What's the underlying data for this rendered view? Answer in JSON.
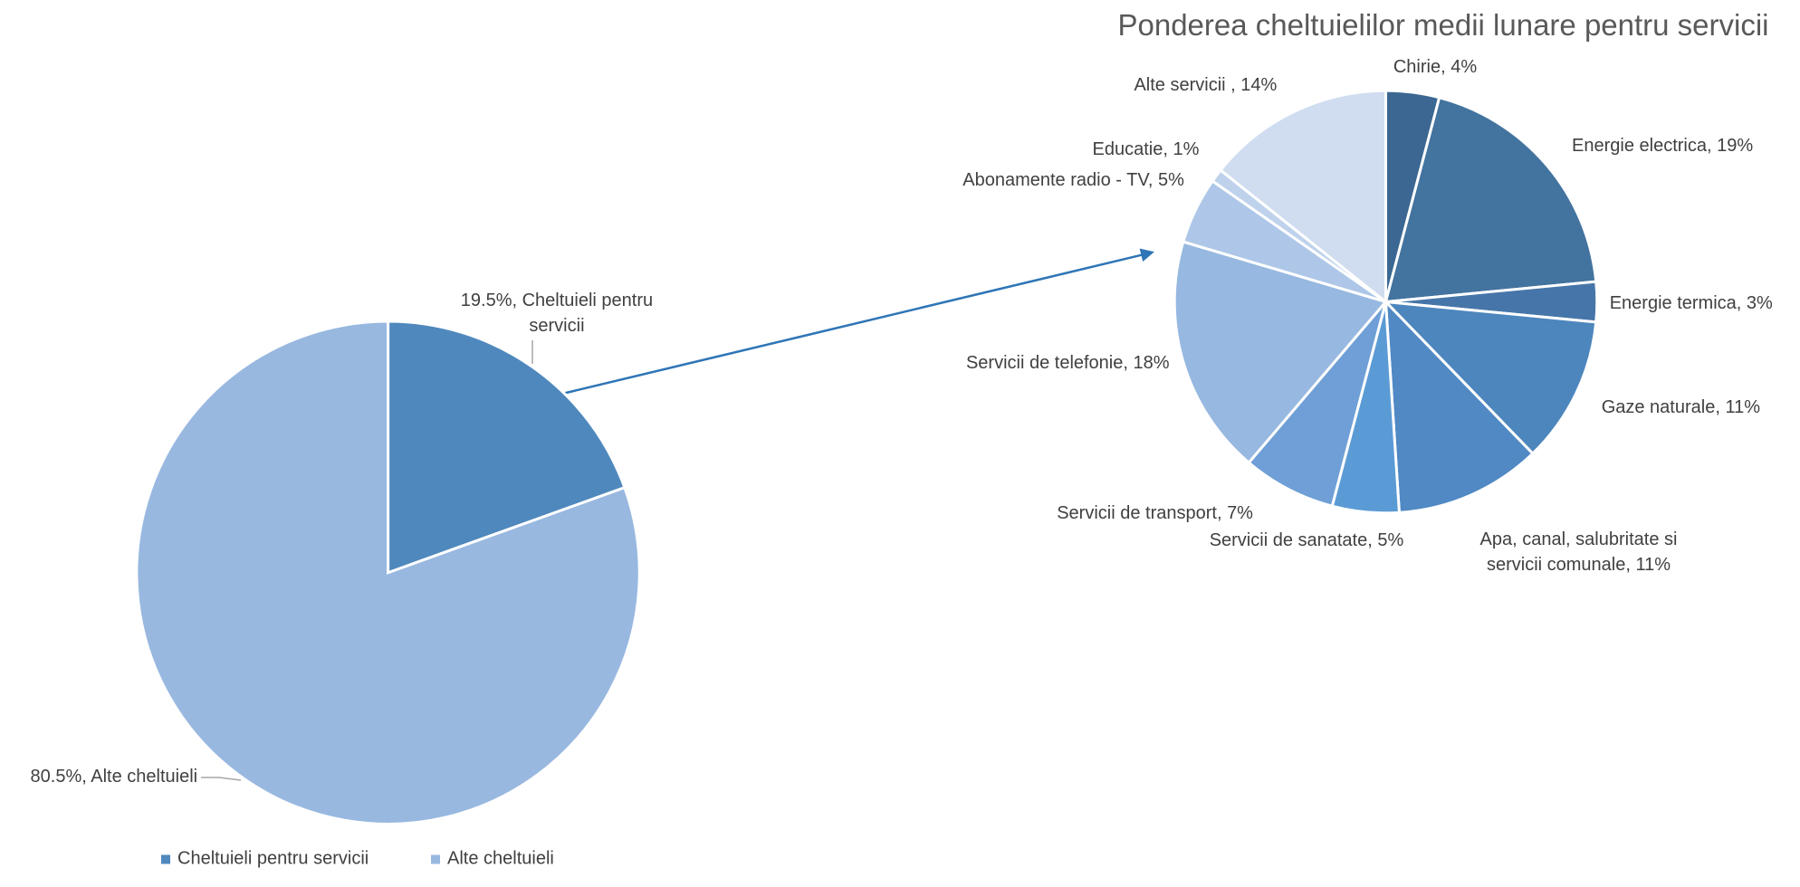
{
  "chart_data": [
    {
      "type": "pie",
      "categories": [
        "Cheltuieli pentru servicii",
        "Alte cheltuieli"
      ],
      "values": [
        19.5,
        80.5
      ],
      "value_labels": [
        "19.5%, Cheltuieli pentru servicii",
        "80.5%, Alte cheltuieli"
      ],
      "colors": [
        "#4f88bd",
        "#98b8e0"
      ],
      "legend": "bottom"
    },
    {
      "type": "pie",
      "title": "Ponderea cheltuielilor medii lunare pentru servicii",
      "categories": [
        "Chirie",
        "Energie electrica",
        "Energie termica",
        "Gaze naturale",
        "Apa, canal, salubritate si servicii comunale",
        "Servicii de sanatate",
        "Servicii de transport",
        "Servicii de telefonie",
        "Abonamente radio - TV",
        "Educatie",
        "Alte servicii "
      ],
      "values": [
        4,
        19,
        3,
        11,
        11,
        5,
        7,
        18,
        5,
        1,
        14
      ],
      "value_labels": [
        "Chirie, 4%",
        "Energie electrica, 19%",
        "Energie termica, 3%",
        "Gaze naturale, 11%",
        "Apa, canal, salubritate si servicii comunale, 11%",
        "Servicii de sanatate, 5%",
        "Servicii de transport, 7%",
        "Servicii de telefonie, 18%",
        "Abonamente radio - TV, 5%",
        "Educatie, 1%",
        "Alte servicii , 14%"
      ],
      "colors": [
        "#3b6792",
        "#43739f",
        "#4676a9",
        "#4d86bd",
        "#5089c4",
        "#5b9bd5",
        "#6f9fd6",
        "#97b8e0",
        "#aec7e8",
        "#bed2ec",
        "#d0ddf0"
      ]
    }
  ]
}
